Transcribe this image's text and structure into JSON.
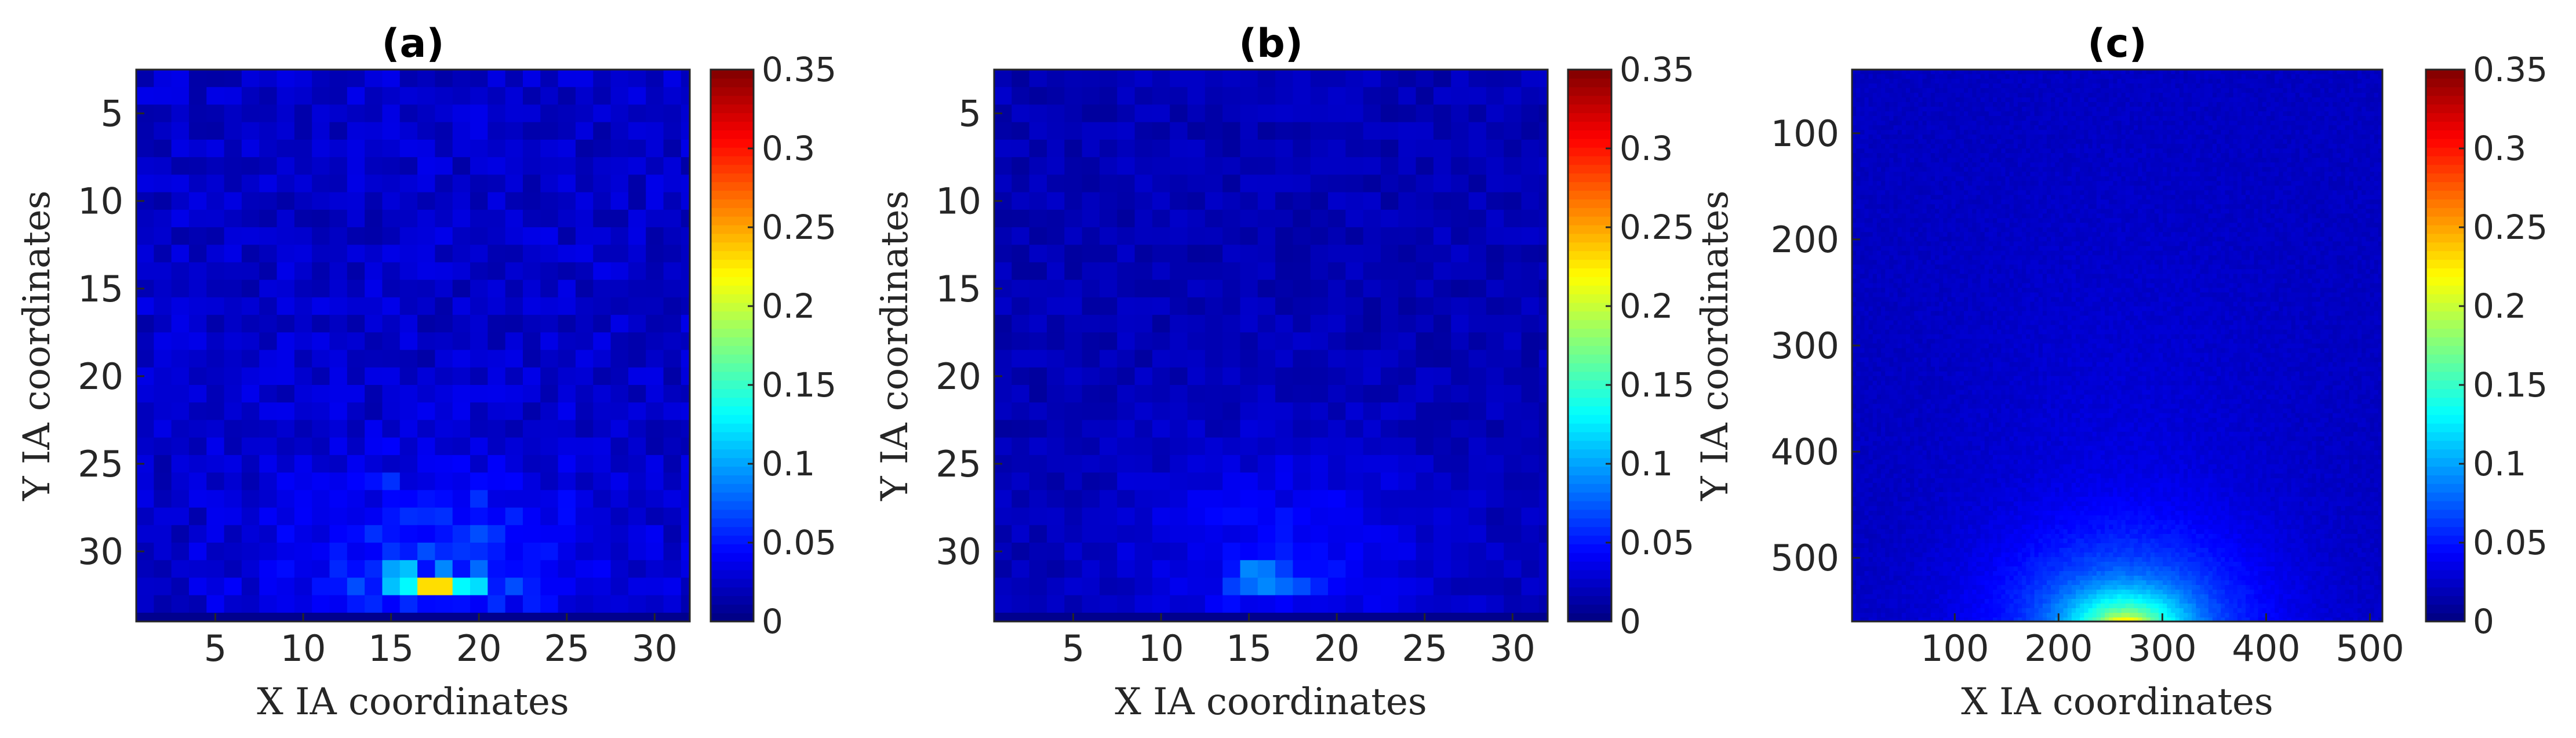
{
  "chart_data": [
    {
      "type": "heatmap",
      "title": "(a)",
      "xlabel": "X IA coordinates",
      "ylabel": "Y IA coordinates",
      "grid_size": 32,
      "xlim": [
        0.5,
        32
      ],
      "ylim": [
        2.5,
        34
      ],
      "y_reversed": true,
      "xticks": [
        5,
        10,
        15,
        20,
        25,
        30
      ],
      "yticks": [
        5,
        10,
        15,
        20,
        25,
        30
      ],
      "colormap": "jet",
      "clim": [
        0,
        0.35
      ],
      "colorbar_ticks": [
        "0",
        "0.05",
        "0.1",
        "0.15",
        "0.2",
        "0.25",
        "0.3",
        "0.35"
      ],
      "colorbar_values": [
        0,
        0.05,
        0.1,
        0.15,
        0.2,
        0.25,
        0.3,
        0.35
      ],
      "base_level": 0.025,
      "noise": 0.012,
      "bottom_row_value": 0.005,
      "hotspots": [
        {
          "x": 17.5,
          "y": 32,
          "value": 0.23
        },
        {
          "x": 16,
          "y": 32,
          "value": 0.13
        },
        {
          "x": 15,
          "y": 32,
          "value": 0.11
        },
        {
          "x": 19,
          "y": 32,
          "value": 0.13
        },
        {
          "x": 20,
          "y": 32,
          "value": 0.12
        },
        {
          "x": 16,
          "y": 31,
          "value": 0.11
        },
        {
          "x": 15,
          "y": 31,
          "value": 0.1
        },
        {
          "x": 18,
          "y": 31,
          "value": 0.09
        },
        {
          "x": 20,
          "y": 31,
          "value": 0.08
        },
        {
          "x": 13,
          "y": 32,
          "value": 0.07
        },
        {
          "x": 22,
          "y": 32,
          "value": 0.07
        },
        {
          "x": 17,
          "y": 30,
          "value": 0.07
        },
        {
          "x": 20,
          "y": 29,
          "value": 0.07
        },
        {
          "x": 14,
          "y": 29,
          "value": 0.06
        },
        {
          "x": 20,
          "y": 27,
          "value": 0.06
        },
        {
          "x": 15,
          "y": 26,
          "value": 0.06
        },
        {
          "x": 18,
          "y": 28,
          "value": 0.06
        }
      ],
      "glow": {
        "x": 17.5,
        "y": 31,
        "sx": 6.5,
        "sy": 4.2,
        "value": 0.03
      }
    },
    {
      "type": "heatmap",
      "title": "(b)",
      "xlabel": "X IA coordinates",
      "ylabel": "Y IA coordinates",
      "grid_size": 32,
      "xlim": [
        0.5,
        32
      ],
      "ylim": [
        2.5,
        34
      ],
      "y_reversed": true,
      "xticks": [
        5,
        10,
        15,
        20,
        25,
        30
      ],
      "yticks": [
        5,
        10,
        15,
        20,
        25,
        30
      ],
      "colormap": "jet",
      "clim": [
        0,
        0.35
      ],
      "colorbar_ticks": [
        "0",
        "0.05",
        "0.1",
        "0.15",
        "0.2",
        "0.25",
        "0.3",
        "0.35"
      ],
      "colorbar_values": [
        0,
        0.05,
        0.1,
        0.15,
        0.2,
        0.25,
        0.3,
        0.35
      ],
      "base_level": 0.018,
      "noise": 0.008,
      "bottom_row_value": 0.005,
      "hotspots": [
        {
          "x": 15,
          "y": 31,
          "value": 0.09
        },
        {
          "x": 16,
          "y": 31,
          "value": 0.085
        },
        {
          "x": 15,
          "y": 32,
          "value": 0.08
        },
        {
          "x": 16,
          "y": 32,
          "value": 0.09
        },
        {
          "x": 17,
          "y": 32,
          "value": 0.08
        },
        {
          "x": 18,
          "y": 32,
          "value": 0.07
        },
        {
          "x": 14,
          "y": 32,
          "value": 0.065
        },
        {
          "x": 17,
          "y": 31,
          "value": 0.065
        },
        {
          "x": 19,
          "y": 32,
          "value": 0.055
        }
      ],
      "glow": {
        "x": 17,
        "y": 30.5,
        "sx": 6,
        "sy": 4.5,
        "value": 0.028
      }
    },
    {
      "type": "heatmap",
      "title": "(c)",
      "xlabel": "X IA coordinates",
      "ylabel": "Y IA coordinates",
      "grid_size": 128,
      "xlim": [
        1,
        512
      ],
      "ylim": [
        40,
        560
      ],
      "data_ylim": [
        40,
        600
      ],
      "y_reversed": true,
      "xticks": [
        100,
        200,
        300,
        400,
        500
      ],
      "yticks": [
        100,
        200,
        300,
        400,
        500
      ],
      "colormap": "jet",
      "clim": [
        0,
        0.35
      ],
      "colorbar_ticks": [
        "0",
        "0.05",
        "0.1",
        "0.15",
        "0.2",
        "0.25",
        "0.3",
        "0.35"
      ],
      "colorbar_values": [
        0,
        0.05,
        0.1,
        0.15,
        0.2,
        0.25,
        0.3,
        0.35
      ],
      "base_level": 0.022,
      "noise": 0.004,
      "bottom_band_value": 0.005,
      "hotspots": [
        {
          "x": 265,
          "y": 575,
          "value": 0.24,
          "sx": 14,
          "sy": 9
        },
        {
          "x": 265,
          "y": 568,
          "value": 0.1,
          "sx": 40,
          "sy": 25
        },
        {
          "x": 265,
          "y": 560,
          "value": 0.05,
          "sx": 90,
          "sy": 60
        }
      ]
    }
  ]
}
